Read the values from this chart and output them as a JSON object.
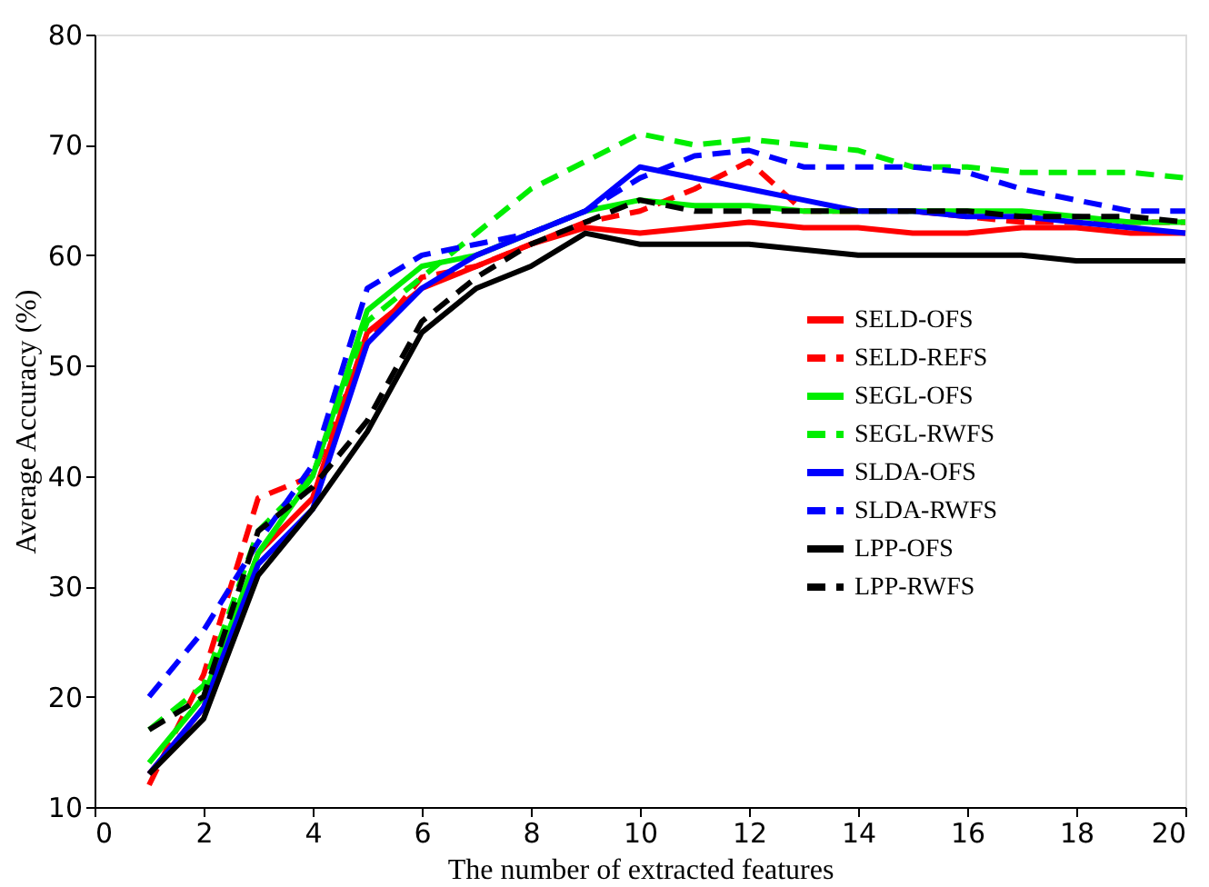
{
  "chart_data": {
    "type": "line",
    "xlabel": "The number of extracted features",
    "ylabel": "Average Accuracy (%)",
    "x": [
      1,
      2,
      3,
      4,
      5,
      6,
      7,
      8,
      9,
      10,
      11,
      12,
      13,
      14,
      15,
      16,
      17,
      18,
      19,
      20
    ],
    "xlim": [
      0,
      20
    ],
    "xticks": [
      0,
      2,
      4,
      6,
      8,
      10,
      12,
      14,
      16,
      18,
      20
    ],
    "ylim": [
      10,
      80
    ],
    "yticks": [
      10,
      20,
      30,
      40,
      50,
      60,
      70,
      80
    ],
    "grid": false,
    "legend": "right",
    "marker": "none",
    "series": [
      {
        "name": "SELD-OFS",
        "color": "#ff0000",
        "line_style": "solid",
        "values": [
          13,
          19,
          33,
          38,
          53,
          57,
          59,
          61,
          62.5,
          62,
          62.5,
          63,
          62.5,
          62.5,
          62,
          62,
          62.5,
          62.5,
          62,
          62
        ]
      },
      {
        "name": "SELD-REFS",
        "color": "#ff0000",
        "line_style": "dashed",
        "values": [
          12,
          22,
          38,
          40,
          52,
          58,
          59,
          61,
          63,
          64,
          66,
          68.5,
          64,
          64,
          64,
          63.5,
          63,
          63,
          63,
          63
        ]
      },
      {
        "name": "SEGL-OFS",
        "color": "#00ee00",
        "line_style": "solid",
        "values": [
          14,
          20,
          33,
          40,
          55,
          59,
          60,
          62,
          64,
          65,
          64.5,
          64.5,
          64,
          64,
          64,
          64,
          64,
          63.5,
          63,
          63
        ]
      },
      {
        "name": "SEGL-RWFS",
        "color": "#00ee00",
        "line_style": "dashed",
        "values": [
          17,
          21,
          35,
          40,
          54,
          58,
          62,
          66,
          68.5,
          71,
          70,
          70.5,
          70,
          69.5,
          68,
          68,
          67.5,
          67.5,
          67.5,
          67
        ]
      },
      {
        "name": "SLDA-OFS",
        "color": "#0000ff",
        "line_style": "solid",
        "values": [
          13,
          19,
          32,
          37,
          52,
          57,
          60,
          62,
          64,
          68,
          67,
          66,
          65,
          64,
          64,
          63.5,
          63.5,
          63,
          62.5,
          62
        ]
      },
      {
        "name": "SLDA-RWFS",
        "color": "#0000ff",
        "line_style": "dashed",
        "values": [
          20,
          26,
          34,
          41,
          57,
          60,
          61,
          62,
          64,
          67,
          69,
          69.5,
          68,
          68,
          68,
          67.5,
          66,
          65,
          64,
          64
        ]
      },
      {
        "name": "LPP-OFS",
        "color": "#000000",
        "line_style": "solid",
        "values": [
          13,
          18,
          31,
          37,
          44,
          53,
          57,
          59,
          62,
          61,
          61,
          61,
          60.5,
          60,
          60,
          60,
          60,
          59.5,
          59.5,
          59.5
        ]
      },
      {
        "name": "LPP-RWFS",
        "color": "#000000",
        "line_style": "dashed",
        "values": [
          17,
          20,
          35,
          39,
          45,
          54,
          58,
          61,
          63,
          65,
          64,
          64,
          64,
          64,
          64,
          64,
          63.5,
          63.5,
          63.5,
          63
        ]
      }
    ]
  }
}
